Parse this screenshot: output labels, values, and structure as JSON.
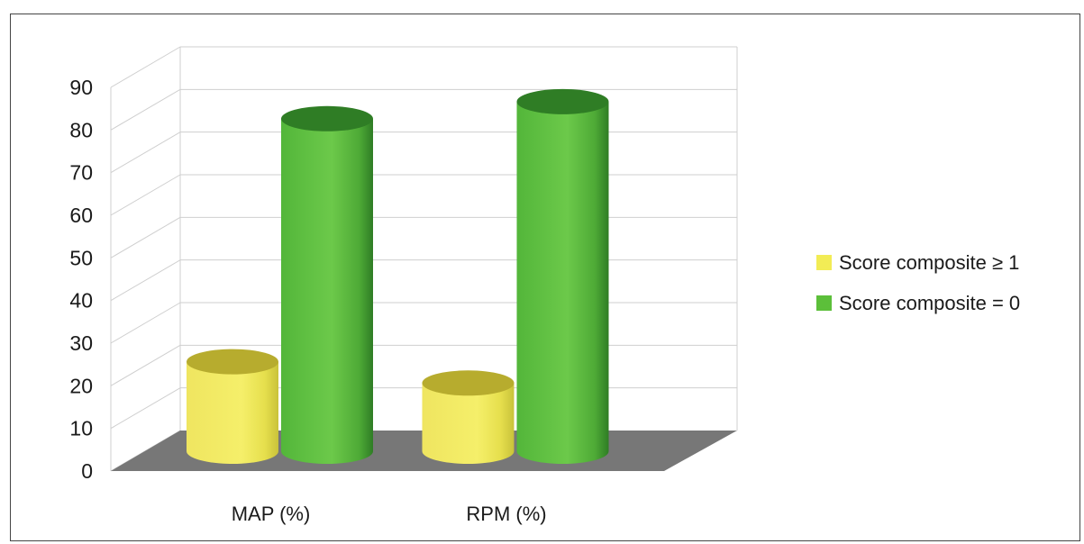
{
  "chart_data": {
    "type": "bar",
    "style": "3d-cylinder",
    "categories": [
      "MAP (%)",
      "RPM (%)"
    ],
    "series": [
      {
        "name": "Score composite ≥ 1",
        "values": [
          21,
          16
        ],
        "color": "#f2ec55"
      },
      {
        "name": "Score composite = 0",
        "values": [
          78,
          82
        ],
        "color": "#5cbf3a"
      }
    ],
    "ylim": [
      0,
      90
    ],
    "yticks": [
      0,
      10,
      20,
      30,
      40,
      50,
      60,
      70,
      80,
      90
    ],
    "grid": true,
    "legend_position": "right",
    "floor_color": "#777777",
    "title": "",
    "xlabel": "",
    "ylabel": ""
  }
}
